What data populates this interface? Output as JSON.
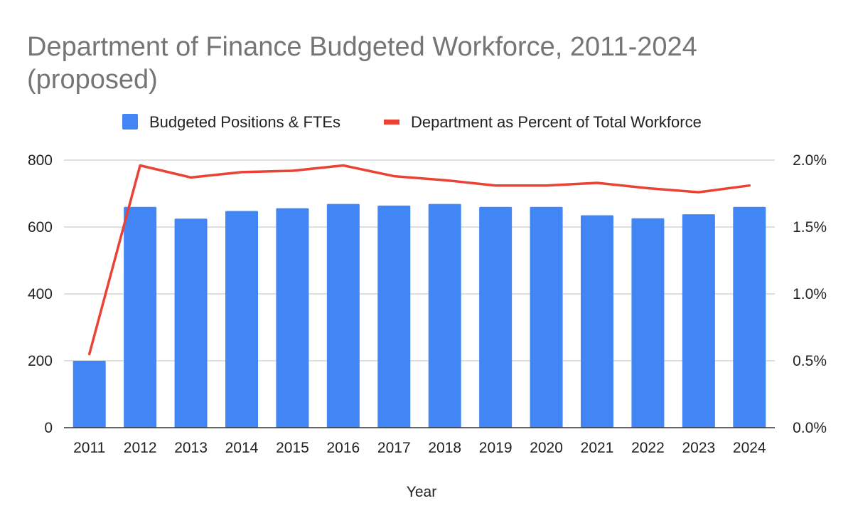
{
  "chart_data": {
    "type": "bar",
    "title_line1": "Department of Finance Budgeted Workforce, 2011-2024",
    "title_line2": "(proposed)",
    "xlabel": "Year",
    "ylabel": "",
    "categories": [
      "2011",
      "2012",
      "2013",
      "2014",
      "2015",
      "2016",
      "2017",
      "2018",
      "2019",
      "2020",
      "2021",
      "2022",
      "2023",
      "2024"
    ],
    "series": [
      {
        "name": "Budgeted Positions & FTEs",
        "type": "bar",
        "axis": "left",
        "color": "#4285f4",
        "values": [
          200,
          660,
          625,
          648,
          656,
          669,
          664,
          669,
          660,
          660,
          635,
          626,
          638,
          660
        ]
      },
      {
        "name": "Department as Percent of Total Workforce",
        "type": "line",
        "axis": "right",
        "color": "#ea4335",
        "values": [
          0.55,
          1.96,
          1.87,
          1.91,
          1.92,
          1.96,
          1.88,
          1.85,
          1.81,
          1.81,
          1.83,
          1.79,
          1.76,
          1.81
        ]
      }
    ],
    "ylim": [
      0,
      800
    ],
    "yticks": [
      0,
      200,
      400,
      600,
      800
    ],
    "y2lim": [
      0,
      2.0
    ],
    "y2ticks": [
      "0.0%",
      "0.5%",
      "1.0%",
      "1.5%",
      "2.0%"
    ],
    "grid": true,
    "legend_position": "top-center"
  }
}
